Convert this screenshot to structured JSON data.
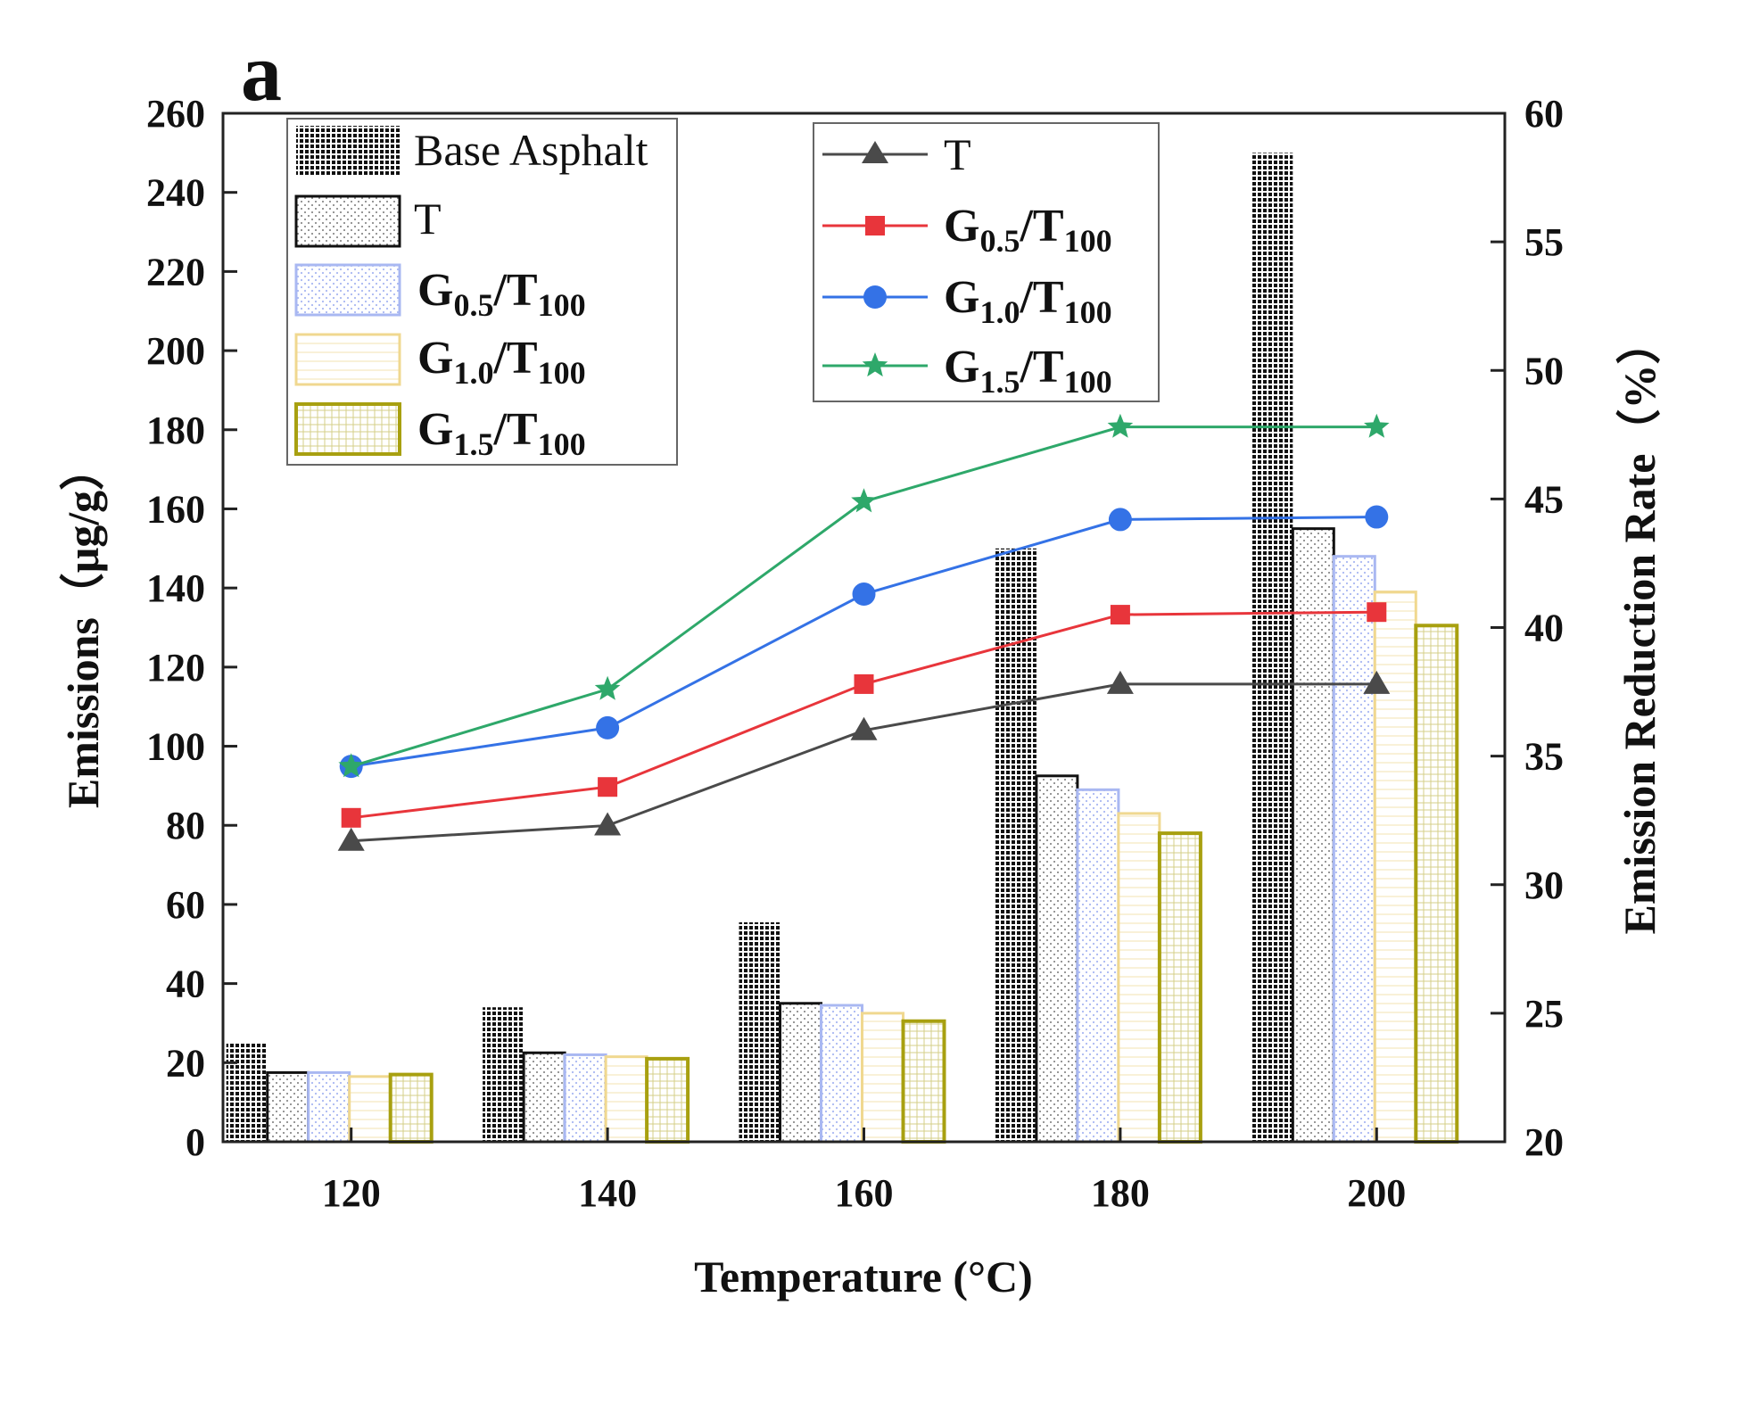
{
  "colors": {
    "T": "#4a4a4a",
    "G0.5": "#e8353b",
    "G1.0": "#3472e6",
    "G1.5": "#2ea86a",
    "base_bar": "#111111",
    "T_bar": "#111111",
    "G0.5_bar": "#a9b8f2",
    "G1.0_bar": "#f0d890",
    "G1.5_bar": "#a8a010"
  },
  "chart_data": {
    "type": "bar+line",
    "panel_label": "a",
    "xlabel": "Temperature (°C)",
    "ylabel_left": "Emissions（μg/g）",
    "ylabel_right": "Emission Reduction Rate（%）",
    "categories": [
      "120",
      "140",
      "160",
      "180",
      "200"
    ],
    "ylim_left": [
      0,
      260
    ],
    "yticks_left": [
      "0",
      "20",
      "40",
      "60",
      "80",
      "100",
      "120",
      "140",
      "160",
      "180",
      "200",
      "220",
      "240",
      "260"
    ],
    "ylim_right": [
      20,
      60
    ],
    "yticks_right": [
      "20",
      "25",
      "30",
      "35",
      "40",
      "45",
      "50",
      "55",
      "60"
    ],
    "bar_series": [
      {
        "key": "base",
        "label": "Base Asphalt",
        "values": [
          25,
          34,
          55.5,
          150,
          250
        ]
      },
      {
        "key": "T",
        "label": "T",
        "values": [
          17.5,
          22.5,
          35,
          92.5,
          155
        ]
      },
      {
        "key": "G0.5",
        "label_main": "G",
        "label_sub1": "0.5",
        "label_mid": "/T",
        "label_sub2": "100",
        "values": [
          17.5,
          22,
          34.5,
          89,
          148
        ]
      },
      {
        "key": "G1.0",
        "label_main": "G",
        "label_sub1": "1.0",
        "label_mid": "/T",
        "label_sub2": "100",
        "values": [
          16.5,
          21.5,
          32.5,
          83,
          139
        ]
      },
      {
        "key": "G1.5",
        "label_main": "G",
        "label_sub1": "1.5",
        "label_mid": "/T",
        "label_sub2": "100",
        "values": [
          17,
          21,
          30.5,
          78,
          130.5
        ]
      }
    ],
    "line_series": [
      {
        "key": "T",
        "label": "T",
        "marker": "triangle",
        "values": [
          31.7,
          32.3,
          36.0,
          37.8,
          37.8
        ]
      },
      {
        "key": "G0.5",
        "label_main": "G",
        "label_sub1": "0.5",
        "label_mid": "/T",
        "label_sub2": "100",
        "marker": "square",
        "values": [
          32.6,
          33.8,
          37.8,
          40.5,
          40.6
        ]
      },
      {
        "key": "G1.0",
        "label_main": "G",
        "label_sub1": "1.0",
        "label_mid": "/T",
        "label_sub2": "100",
        "marker": "circle",
        "values": [
          34.6,
          36.1,
          41.3,
          44.2,
          44.3
        ]
      },
      {
        "key": "G1.5",
        "label_main": "G",
        "label_sub1": "1.5",
        "label_mid": "/T",
        "label_sub2": "100",
        "marker": "star",
        "values": [
          34.6,
          37.6,
          44.9,
          47.8,
          47.8
        ]
      }
    ]
  }
}
